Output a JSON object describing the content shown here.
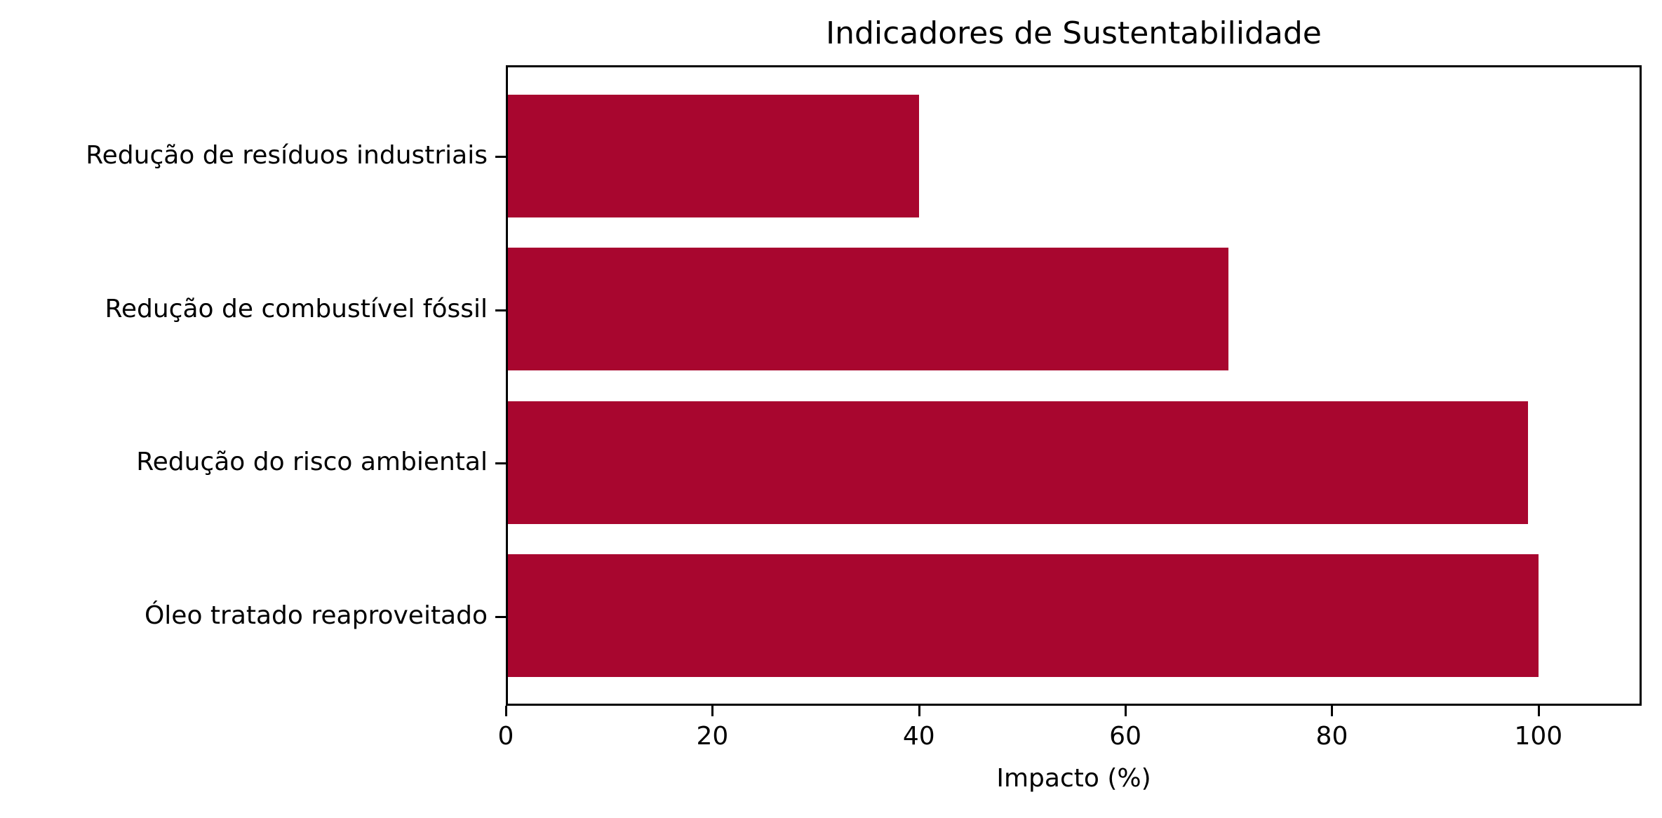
{
  "chart_data": {
    "type": "bar",
    "orientation": "horizontal",
    "title": "Indicadores de Sustentabilidade",
    "xlabel": "Impacto (%)",
    "ylabel": "",
    "categories": [
      "Redução de resíduos industriais",
      "Redução de combustível fóssil",
      "Redução do risco ambiental",
      "Óleo tratado reaproveitado"
    ],
    "values": [
      40,
      70,
      99,
      100
    ],
    "xlim": [
      0,
      110
    ],
    "xticks": [
      0,
      20,
      40,
      60,
      80,
      100
    ],
    "xtick_labels": [
      "0",
      "20",
      "40",
      "60",
      "80",
      "100"
    ],
    "grid": false,
    "legend": null,
    "bar_color": "#A8062F"
  }
}
